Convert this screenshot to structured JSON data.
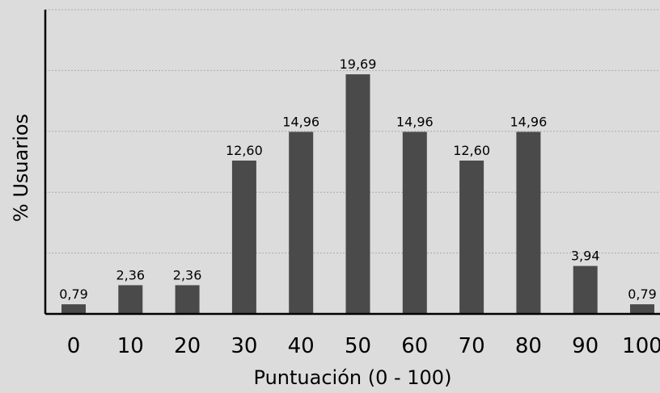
{
  "chart_data": {
    "type": "bar",
    "categories": [
      "0",
      "10",
      "20",
      "30",
      "40",
      "50",
      "60",
      "70",
      "80",
      "90",
      "100"
    ],
    "values": [
      0.79,
      2.36,
      2.36,
      12.6,
      14.96,
      19.69,
      14.96,
      12.6,
      14.96,
      3.94,
      0.79
    ],
    "data_labels": [
      "0,79",
      "2,36",
      "2,36",
      "12,60",
      "14,96",
      "19,69",
      "14,96",
      "12,60",
      "14,96",
      "3,94",
      "0,79"
    ],
    "title": "",
    "xlabel": "Puntuación (0 - 100)",
    "ylabel": "% Usuarios",
    "ylim": [
      0,
      25
    ],
    "grid": true,
    "legend": "none",
    "colors": {
      "bar": "#4b4a4a",
      "background": "#dcdcdc",
      "grid": "#9a9a9a"
    }
  }
}
